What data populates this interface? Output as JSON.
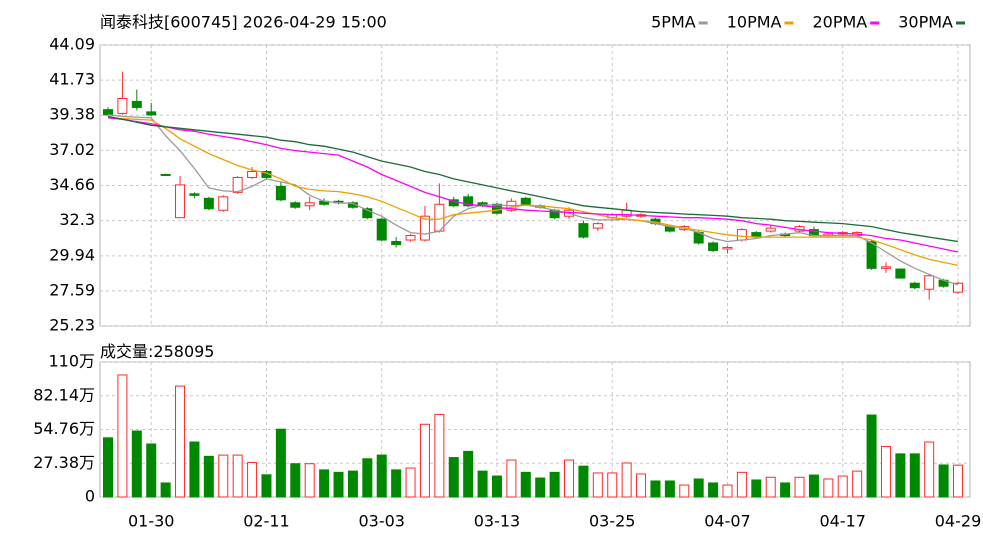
{
  "chart_data": [
    {
      "type": "candlestick",
      "title": "闻泰科技[600745] 2026-04-29 15:00",
      "categories": [
        null,
        null,
        null,
        "01-30",
        null,
        null,
        null,
        null,
        null,
        null,
        null,
        "02-11",
        null,
        null,
        null,
        null,
        null,
        null,
        null,
        "03-03",
        null,
        null,
        null,
        null,
        null,
        null,
        null,
        "03-13",
        null,
        null,
        null,
        null,
        null,
        null,
        null,
        "03-25",
        null,
        null,
        null,
        null,
        null,
        null,
        null,
        "04-07",
        null,
        null,
        null,
        null,
        null,
        null,
        null,
        "04-17",
        null,
        null,
        null,
        null,
        null,
        null,
        null,
        "04-29"
      ],
      "open": [
        39.75,
        39.5,
        40.3,
        39.6,
        35.4,
        32.5,
        34.1,
        33.8,
        33.0,
        34.2,
        35.2,
        35.6,
        34.6,
        33.5,
        33.3,
        33.6,
        33.6,
        33.5,
        33.1,
        32.4,
        30.9,
        31.0,
        31.0,
        31.6,
        33.7,
        33.9,
        33.5,
        33.4,
        33.0,
        33.8,
        33.3,
        33.0,
        32.6,
        32.1,
        31.8,
        32.5,
        32.6,
        32.6,
        32.4,
        31.9,
        31.7,
        31.5,
        30.8,
        30.4,
        31.0,
        31.5,
        31.6,
        31.4,
        31.6,
        31.7,
        31.3,
        31.4,
        31.3,
        30.9,
        29.1,
        29.05,
        28.1,
        27.7,
        28.3,
        27.5
      ],
      "high": [
        39.9,
        42.3,
        41.1,
        40.2,
        35.45,
        35.3,
        34.2,
        33.9,
        34.0,
        35.3,
        35.9,
        35.7,
        34.9,
        33.6,
        33.9,
        33.8,
        33.7,
        33.6,
        33.2,
        32.5,
        31.2,
        31.4,
        33.3,
        34.8,
        33.9,
        34.1,
        33.6,
        33.5,
        33.8,
        33.9,
        33.4,
        33.1,
        33.2,
        32.3,
        32.2,
        32.8,
        33.5,
        32.8,
        32.5,
        32.0,
        32.0,
        31.6,
        30.9,
        30.6,
        31.8,
        31.6,
        32.0,
        31.5,
        32.0,
        31.9,
        31.5,
        31.6,
        31.6,
        31.0,
        29.5,
        29.1,
        28.2,
        28.7,
        28.4,
        28.2
      ],
      "low": [
        39.4,
        39.4,
        39.7,
        39.3,
        35.3,
        32.5,
        33.8,
        33.0,
        32.9,
        34.1,
        35.1,
        35.1,
        33.6,
        33.1,
        33.0,
        33.3,
        33.4,
        33.1,
        32.4,
        30.9,
        30.5,
        30.9,
        30.9,
        31.5,
        33.2,
        33.2,
        33.2,
        32.7,
        32.9,
        33.3,
        33.1,
        32.4,
        32.4,
        31.1,
        31.6,
        32.4,
        32.5,
        32.5,
        32.0,
        31.5,
        31.6,
        30.7,
        30.2,
        30.1,
        30.9,
        31.1,
        31.5,
        31.2,
        31.5,
        31.2,
        31.2,
        31.3,
        31.2,
        29.0,
        28.8,
        28.4,
        27.7,
        27.0,
        27.8,
        27.4
      ],
      "close": [
        39.4,
        40.5,
        39.9,
        39.4,
        35.35,
        34.7,
        34.0,
        33.1,
        33.9,
        35.2,
        35.6,
        35.2,
        33.7,
        33.2,
        33.5,
        33.4,
        33.5,
        33.2,
        32.5,
        31.0,
        30.7,
        31.3,
        32.6,
        33.4,
        33.3,
        33.3,
        33.3,
        32.8,
        33.6,
        33.4,
        33.2,
        32.5,
        33.0,
        31.2,
        32.1,
        32.7,
        33.0,
        32.7,
        32.1,
        31.6,
        31.9,
        30.8,
        30.3,
        30.5,
        31.7,
        31.2,
        31.8,
        31.3,
        31.9,
        31.3,
        31.4,
        31.5,
        31.5,
        29.1,
        29.2,
        28.45,
        27.8,
        28.6,
        27.9,
        28.1
      ],
      "up_color": "#ff2a2a",
      "down_color": "#008800",
      "ylim": [
        25.23,
        44.09
      ],
      "yticks": [
        44.09,
        41.73,
        39.38,
        37.02,
        34.66,
        32.3,
        29.94,
        27.59,
        25.23
      ],
      "grid": true,
      "legend": "top-right",
      "series": [
        {
          "name": "5PMA",
          "color": "#9a9a9a",
          "values": [
            39.4,
            39.3,
            39.25,
            39.2,
            38.0,
            37.0,
            35.8,
            34.5,
            34.3,
            34.25,
            34.6,
            35.1,
            34.9,
            34.7,
            34.0,
            33.6,
            33.5,
            33.45,
            33.0,
            32.6,
            32.0,
            31.5,
            31.4,
            31.6,
            32.6,
            33.1,
            33.35,
            33.35,
            33.3,
            33.35,
            33.2,
            33.0,
            32.8,
            32.5,
            32.35,
            32.35,
            32.4,
            32.3,
            32.1,
            31.9,
            31.8,
            31.5,
            31.1,
            30.9,
            31.0,
            31.1,
            31.3,
            31.4,
            31.5,
            31.3,
            31.3,
            31.3,
            31.3,
            30.8,
            30.2,
            29.6,
            29.1,
            28.7,
            28.3,
            28.0
          ]
        },
        {
          "name": "10PMA",
          "color": "#f0a000",
          "values": [
            39.2,
            39.15,
            39.1,
            39.05,
            38.5,
            37.8,
            37.3,
            36.8,
            36.4,
            36.0,
            35.7,
            35.5,
            35.1,
            34.6,
            34.4,
            34.3,
            34.25,
            34.1,
            33.9,
            33.6,
            33.2,
            32.8,
            32.4,
            32.4,
            32.7,
            32.8,
            32.9,
            33.0,
            33.2,
            33.35,
            33.3,
            33.2,
            33.1,
            32.9,
            32.7,
            32.5,
            32.4,
            32.3,
            32.2,
            32.0,
            31.8,
            31.65,
            31.5,
            31.35,
            31.25,
            31.2,
            31.2,
            31.2,
            31.2,
            31.2,
            31.2,
            31.2,
            31.2,
            31.0,
            30.7,
            30.35,
            30.0,
            29.7,
            29.5,
            29.3
          ]
        },
        {
          "name": "20PMA",
          "color": "#ff00ff",
          "values": [
            39.2,
            39.1,
            38.95,
            38.8,
            38.6,
            38.4,
            38.3,
            38.1,
            37.95,
            37.8,
            37.6,
            37.4,
            37.15,
            37.0,
            36.9,
            36.8,
            36.7,
            36.3,
            35.9,
            35.4,
            35.0,
            34.6,
            34.2,
            33.9,
            33.6,
            33.4,
            33.3,
            33.2,
            33.1,
            33.0,
            32.95,
            32.9,
            32.85,
            32.8,
            32.75,
            32.7,
            32.7,
            32.65,
            32.6,
            32.55,
            32.5,
            32.5,
            32.45,
            32.4,
            32.3,
            32.1,
            32.0,
            31.85,
            31.7,
            31.6,
            31.5,
            31.45,
            31.4,
            31.3,
            31.1,
            31.0,
            30.8,
            30.6,
            30.4,
            30.2
          ]
        },
        {
          "name": "30PMA",
          "color": "#1e6b3a",
          "values": [
            39.3,
            39.1,
            38.9,
            38.7,
            38.6,
            38.5,
            38.4,
            38.3,
            38.2,
            38.1,
            38.0,
            37.9,
            37.7,
            37.6,
            37.4,
            37.3,
            37.1,
            36.9,
            36.6,
            36.3,
            36.1,
            35.9,
            35.6,
            35.4,
            35.1,
            34.9,
            34.7,
            34.5,
            34.3,
            34.1,
            33.9,
            33.7,
            33.5,
            33.3,
            33.2,
            33.1,
            33.0,
            32.9,
            32.85,
            32.8,
            32.75,
            32.7,
            32.65,
            32.6,
            32.5,
            32.45,
            32.4,
            32.3,
            32.25,
            32.2,
            32.15,
            32.1,
            32.0,
            31.9,
            31.7,
            31.5,
            31.35,
            31.2,
            31.05,
            30.9
          ]
        }
      ]
    },
    {
      "type": "bar",
      "title": "成交量:",
      "values": [
        480000,
        990000,
        535000,
        430000,
        114000,
        900000,
        446000,
        330000,
        340000,
        340000,
        280000,
        180000,
        550000,
        270000,
        270000,
        220000,
        200000,
        210000,
        310000,
        340000,
        220000,
        235000,
        590000,
        670000,
        320000,
        370000,
        210000,
        170000,
        300000,
        200000,
        154000,
        200000,
        300000,
        250000,
        195000,
        195000,
        276000,
        187000,
        130000,
        130000,
        97000,
        146000,
        114000,
        97000,
        200000,
        138000,
        160000,
        114000,
        160000,
        178000,
        146000,
        170000,
        210000,
        665000,
        410000,
        350000,
        350000,
        446000,
        260000,
        258095
      ],
      "ylim": [
        0,
        1095200
      ],
      "yticks": [
        {
          "value": 1095200,
          "label": "110万"
        },
        {
          "value": 821400,
          "label": "82.14万"
        },
        {
          "value": 547600,
          "label": "54.76万"
        },
        {
          "value": 273800,
          "label": "27.38万"
        },
        0
      ],
      "grid": true
    }
  ]
}
